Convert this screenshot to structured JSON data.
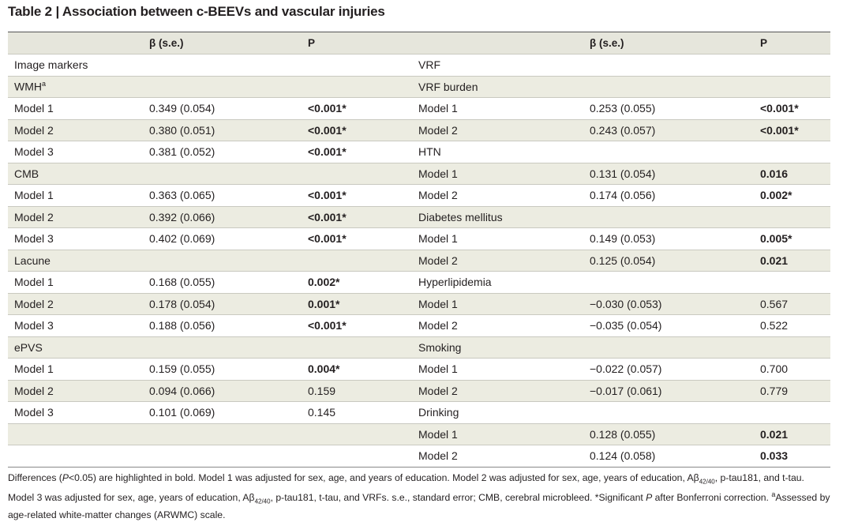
{
  "title": "Table 2 | Association between c-BEEVs and vascular injuries",
  "table": {
    "header": [
      "β (s.e.)",
      "P",
      "β (s.e.)",
      "P"
    ],
    "left": [
      {
        "label": "Image markers"
      },
      {
        "label": "WMH",
        "label_note": "a"
      },
      {
        "label": "Model 1",
        "beta": "0.349 (0.054)",
        "p": "<0.001*",
        "bold": true
      },
      {
        "label": "Model 2",
        "beta": "0.380 (0.051)",
        "p": "<0.001*",
        "bold": true
      },
      {
        "label": "Model 3",
        "beta": "0.381 (0.052)",
        "p": "<0.001*",
        "bold": true
      },
      {
        "label": "CMB"
      },
      {
        "label": "Model 1",
        "beta": "0.363 (0.065)",
        "p": "<0.001*",
        "bold": true
      },
      {
        "label": "Model 2",
        "beta": "0.392 (0.066)",
        "p": "<0.001*",
        "bold": true
      },
      {
        "label": "Model 3",
        "beta": "0.402 (0.069)",
        "p": "<0.001*",
        "bold": true
      },
      {
        "label": "Lacune"
      },
      {
        "label": "Model 1",
        "beta": "0.168 (0.055)",
        "p": "0.002*",
        "bold": true
      },
      {
        "label": "Model 2",
        "beta": "0.178 (0.054)",
        "p": "0.001*",
        "bold": true
      },
      {
        "label": "Model 3",
        "beta": "0.188 (0.056)",
        "p": "<0.001*",
        "bold": true
      },
      {
        "label": "ePVS"
      },
      {
        "label": "Model 1",
        "beta": "0.159 (0.055)",
        "p": "0.004*",
        "bold": true
      },
      {
        "label": "Model 2",
        "beta": "0.094 (0.066)",
        "p": "0.159",
        "bold": false
      },
      {
        "label": "Model 3",
        "beta": "0.101 (0.069)",
        "p": "0.145",
        "bold": false
      }
    ],
    "right": [
      {
        "label": "VRF"
      },
      {
        "label": "VRF burden"
      },
      {
        "label": "Model 1",
        "beta": "0.253 (0.055)",
        "p": "<0.001*",
        "bold": true
      },
      {
        "label": "Model 2",
        "beta": "0.243 (0.057)",
        "p": "<0.001*",
        "bold": true
      },
      {
        "label": "HTN"
      },
      {
        "label": "Model 1",
        "beta": "0.131 (0.054)",
        "p": "0.016",
        "bold": true
      },
      {
        "label": "Model 2",
        "beta": "0.174 (0.056)",
        "p": "0.002*",
        "bold": true
      },
      {
        "label": "Diabetes mellitus"
      },
      {
        "label": "Model 1",
        "beta": "0.149 (0.053)",
        "p": "0.005*",
        "bold": true
      },
      {
        "label": "Model 2",
        "beta": "0.125 (0.054)",
        "p": "0.021",
        "bold": true
      },
      {
        "label": "Hyperlipidemia"
      },
      {
        "label": "Model 1",
        "beta": "−0.030 (0.053)",
        "p": "0.567",
        "bold": false
      },
      {
        "label": "Model 2",
        "beta": "−0.035 (0.054)",
        "p": "0.522",
        "bold": false
      },
      {
        "label": "Smoking"
      },
      {
        "label": "Model 1",
        "beta": "−0.022 (0.057)",
        "p": "0.700",
        "bold": false
      },
      {
        "label": "Model 2",
        "beta": "−0.017 (0.061)",
        "p": "0.779",
        "bold": false
      },
      {
        "label": "Drinking"
      },
      {
        "label": "Model 1",
        "beta": "0.128 (0.055)",
        "p": "0.021",
        "bold": true
      },
      {
        "label": "Model 2",
        "beta": "0.124 (0.058)",
        "p": "0.033",
        "bold": true
      }
    ]
  },
  "footnote": [
    "Differences (",
    "P",
    "<0.05) are highlighted in bold. Model 1 was adjusted for sex, age, and years of education. Model 2 was adjusted for sex, age, years of education, Aβ",
    "42/40",
    ", p-tau181, and t-tau. Model 3 was adjusted for sex, age, years of education, Aβ",
    "42/40",
    ", p-tau181, t-tau, and VRFs. s.e., standard error; CMB, cerebral microbleed. *Significant ",
    "P",
    " after Bonferroni correction. ",
    "a",
    "Assessed by age-related white-matter changes (ARWMC) scale."
  ]
}
